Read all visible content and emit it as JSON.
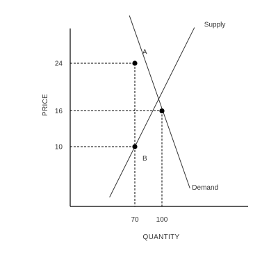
{
  "chart_data": {
    "type": "line",
    "xlabel": "QUANTITY",
    "ylabel": "PRICE",
    "x_ticks": [
      70,
      100
    ],
    "y_ticks": [
      24,
      16,
      10
    ],
    "xlim": [
      40,
      140
    ],
    "ylim": [
      0,
      32
    ],
    "series": [
      {
        "name": "Supply",
        "x": [
          42,
          136
        ],
        "y": [
          1.5,
          30
        ]
      },
      {
        "name": "Demand",
        "x": [
          64,
          131
        ],
        "y": [
          32,
          3
        ]
      }
    ],
    "points": [
      {
        "label": "A",
        "x": 70,
        "y": 24
      },
      {
        "label": "",
        "x": 100,
        "y": 16
      },
      {
        "label": "B",
        "x": 70,
        "y": 10
      }
    ],
    "guide_lines": [
      {
        "x": 70,
        "y": 24
      },
      {
        "x": 100,
        "y": 16
      },
      {
        "x": 70,
        "y": 10
      }
    ]
  }
}
